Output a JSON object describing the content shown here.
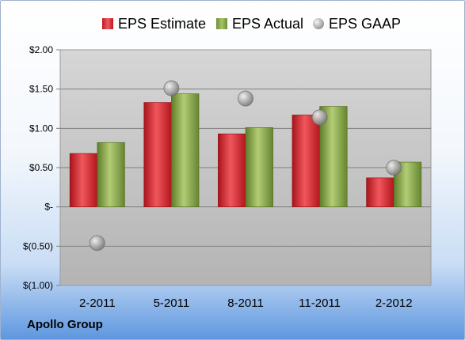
{
  "chart_data": {
    "type": "bar",
    "categories": [
      "2-2011",
      "5-2011",
      "8-2011",
      "11-2011",
      "2-2012"
    ],
    "series": [
      {
        "name": "EPS Estimate",
        "kind": "bar",
        "color": "#d2262c",
        "values": [
          0.68,
          1.33,
          0.93,
          1.17,
          0.37
        ]
      },
      {
        "name": "EPS Actual",
        "kind": "bar",
        "color": "#8db04a",
        "values": [
          0.82,
          1.44,
          1.01,
          1.28,
          0.57
        ]
      },
      {
        "name": "EPS GAAP",
        "kind": "scatter",
        "color": "#a6a6a6",
        "values": [
          -0.46,
          1.51,
          1.38,
          1.14,
          0.5
        ]
      }
    ],
    "ylim": [
      -1.0,
      2.0
    ],
    "yticks": [
      2.0,
      1.5,
      1.0,
      0.5,
      0.0,
      -0.5,
      -1.0
    ],
    "ytick_labels": [
      "$2.00",
      "$1.50",
      "$1.00",
      "$0.50",
      "$-",
      "$(0.50)",
      "$(1.00)"
    ],
    "grid": true,
    "legend_position": "top"
  },
  "footer": {
    "company": "Apollo Group"
  }
}
